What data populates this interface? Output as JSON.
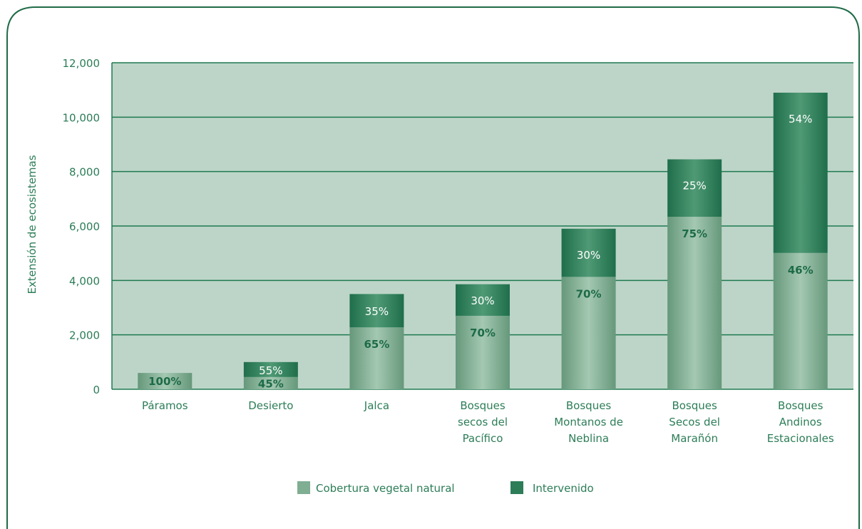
{
  "colors": {
    "plot_bg": "#bdd5c8",
    "grid": "#1f7a50",
    "natural": "#7fae92",
    "intervenido": "#2c7d58",
    "text": "#2c7d58",
    "frame": "#1f6b47"
  },
  "chart_data": {
    "type": "bar",
    "stacked": true,
    "ylabel": "Extensión de ecosistemas",
    "ylim": [
      0,
      12000
    ],
    "yticks": [
      0,
      2000,
      4000,
      6000,
      8000,
      10000,
      12000
    ],
    "ytick_labels": [
      "0",
      "2,000",
      "4,000",
      "6,000",
      "8,000",
      "10,000",
      "12,000"
    ],
    "grid": true,
    "legend_position": "bottom",
    "categories": [
      [
        "Páramos"
      ],
      [
        "Desierto"
      ],
      [
        "Jalca"
      ],
      [
        "Bosques",
        "secos del",
        "Pacífico"
      ],
      [
        "Bosques",
        "Montanos de",
        "Neblina"
      ],
      [
        "Bosques",
        "Secos del",
        "Marañón"
      ],
      [
        "Bosques",
        "Andinos",
        "Estacionales"
      ]
    ],
    "series": [
      {
        "name": "Cobertura vegetal natural",
        "values": [
          600,
          450,
          2275,
          2700,
          4130,
          6340,
          5010
        ],
        "labels": [
          "100%",
          "45%",
          "65%",
          "70%",
          "70%",
          "75%",
          "46%"
        ]
      },
      {
        "name": "Intervenido",
        "values": [
          0,
          550,
          1225,
          1160,
          1770,
          2110,
          5890
        ],
        "labels": [
          "",
          "55%",
          "35%",
          "30%",
          "30%",
          "25%",
          "54%"
        ]
      }
    ]
  }
}
